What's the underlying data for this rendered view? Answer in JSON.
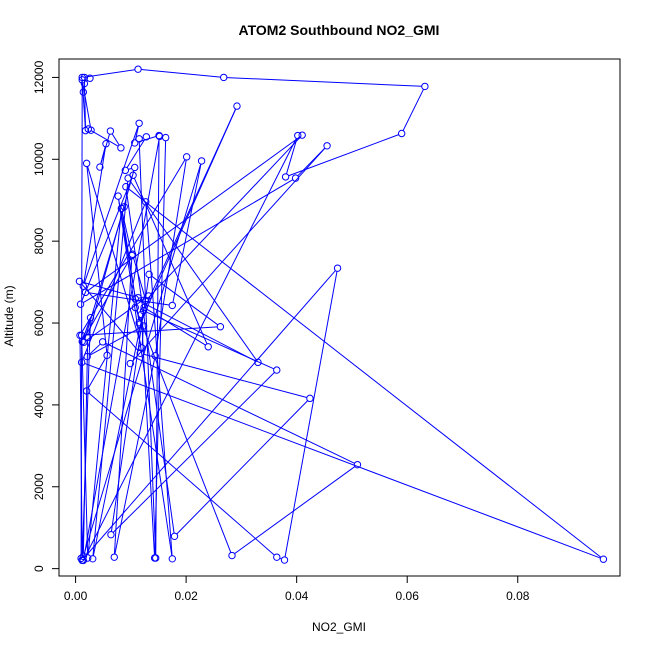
{
  "chart_data": {
    "type": "line",
    "title": "ATOM2 Southbound NO2_GMI",
    "xlabel": "NO2_GMI",
    "ylabel": "Altitude (m)",
    "xlim": [
      -0.003,
      0.0985
    ],
    "ylim": [
      -180,
      12450
    ],
    "xticks": [
      0.0,
      0.02,
      0.04,
      0.06,
      0.08
    ],
    "xtick_labels": [
      "0.00",
      "0.02",
      "0.04",
      "0.06",
      "0.08"
    ],
    "yticks": [
      0,
      2000,
      4000,
      6000,
      8000,
      10000,
      12000
    ],
    "ytick_labels": [
      "0",
      "2000",
      "4000",
      "6000",
      "8000",
      "10000",
      "12000"
    ],
    "grid": false,
    "legend": "none",
    "series_color": "#0000ff",
    "markers": "open-circle",
    "series": [
      {
        "x": [
          0.0014,
          0.0016,
          0.0026,
          0.0016,
          0.0018,
          0.0012,
          0.0028,
          0.0023,
          0.0082,
          0.0063,
          0.0044,
          0.0055,
          0.0014,
          0.0115,
          0.0107,
          0.0151,
          0.0145,
          0.0115,
          0.0128,
          0.009,
          0.0107,
          0.0022,
          0.0014,
          0.001,
          0.0012,
          0.0113,
          0.0268,
          0.0632,
          0.059,
          0.038,
          0.0402,
          0.0014,
          0.0152,
          0.0163,
          0.0143,
          0.0119,
          0.0115,
          0.0083,
          0.0102,
          0.007,
          0.0144,
          0.0201,
          0.0008,
          0.0012,
          0.0228,
          0.0175,
          0.0018,
          0.041,
          0.0127,
          0.0103,
          0.0012,
          0.0027,
          0.0012,
          0.0474,
          0.0378,
          0.0364,
          0.002,
          0.0057,
          0.002,
          0.012,
          0.0123,
          0.0021,
          0.0049,
          0.051,
          0.0283,
          0.0108,
          0.0113,
          0.0007,
          0.0117,
          0.0424,
          0.0179,
          0.0091,
          0.0955,
          0.0011,
          0.0127,
          0.0175,
          0.0077,
          0.0116,
          0.0292,
          0.0123,
          0.0364,
          0.0064,
          0.0133,
          0.0262,
          0.0011,
          0.0022,
          0.0083,
          0.0088,
          0.0015,
          0.0132,
          0.0108,
          0.033,
          0.0095,
          0.0031,
          0.0124,
          0.024,
          0.0104,
          0.0009,
          0.0398,
          0.0455,
          0.0099
        ],
        "y": [
          11640,
          11850,
          11980,
          12000,
          10700,
          11940,
          10710,
          10740,
          10280,
          10690,
          9810,
          10380,
          6900,
          10880,
          10400,
          10580,
          260,
          10500,
          10550,
          9730,
          9800,
          5650,
          300,
          250,
          12000,
          12200,
          12000,
          11780,
          10630,
          9570,
          10580,
          200,
          10560,
          10530,
          260,
          6210,
          6010,
          8800,
          7650,
          280,
          5200,
          10060,
          5700,
          200,
          9960,
          6430,
          6750,
          10590,
          6550,
          7680,
          5550,
          6130,
          210,
          7340,
          210,
          280,
          4340,
          5210,
          9900,
          5390,
          5930,
          5180,
          5540,
          2540,
          320,
          6380,
          6620,
          7020,
          5260,
          4160,
          790,
          9330,
          230,
          5040,
          8960,
          240,
          9100,
          5970,
          11300,
          6300,
          4850,
          830,
          7190,
          5910,
          5700,
          260,
          8800,
          8840,
          5530,
          6660,
          6590,
          5040,
          9540,
          240,
          6380,
          5420,
          9610,
          6460,
          9540,
          10330,
          5010
        ]
      }
    ]
  }
}
